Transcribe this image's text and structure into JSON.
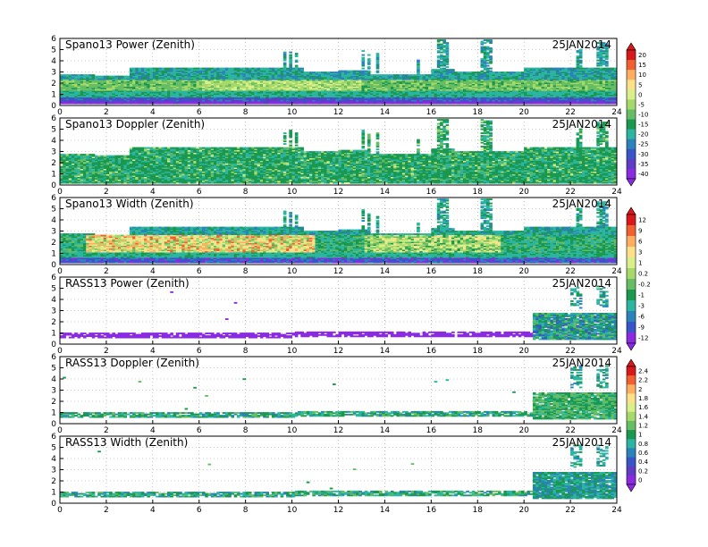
{
  "chart_data": [
    {
      "type": "heatmap",
      "panel": "spano13_power",
      "title": "Spano13 Power (Zenith)",
      "date": "25JAN2014",
      "xlim": [
        0,
        24
      ],
      "ylim": [
        0,
        6
      ],
      "x_ticks": [
        "0",
        "2",
        "4",
        "6",
        "8",
        "10",
        "12",
        "14",
        "16",
        "18",
        "20",
        "22",
        "24"
      ],
      "y_ticks": [
        "0",
        "1",
        "2",
        "3",
        "4",
        "5",
        "6"
      ],
      "coverage_top_km": [
        [
          0,
          2.7
        ],
        [
          1.5,
          2.6
        ],
        [
          3,
          3.3
        ],
        [
          10.5,
          3.0
        ],
        [
          12,
          3.1
        ],
        [
          13.3,
          2.7
        ],
        [
          16,
          3.2
        ],
        [
          17,
          3.0
        ],
        [
          20,
          3.3
        ],
        [
          24,
          3.3
        ]
      ],
      "colorbar_group": 1
    },
    {
      "type": "heatmap",
      "panel": "spano13_doppler",
      "title": "Spano13 Doppler (Zenith)",
      "date": "25JAN2014",
      "xlim": [
        0,
        24
      ],
      "ylim": [
        0,
        6
      ],
      "x_ticks": [
        "0",
        "2",
        "4",
        "6",
        "8",
        "10",
        "12",
        "14",
        "16",
        "18",
        "20",
        "22",
        "24"
      ],
      "y_ticks": [
        "0",
        "1",
        "2",
        "3",
        "4",
        "5",
        "6"
      ],
      "colorbar_group": 1
    },
    {
      "type": "heatmap",
      "panel": "spano13_width",
      "title": "Spano13 Width (Zenith)",
      "date": "25JAN2014",
      "xlim": [
        0,
        24
      ],
      "ylim": [
        0,
        6
      ],
      "x_ticks": [
        "0",
        "2",
        "4",
        "6",
        "8",
        "10",
        "12",
        "14",
        "16",
        "18",
        "20",
        "22",
        "24"
      ],
      "y_ticks": [
        "0",
        "1",
        "2",
        "3",
        "4",
        "5",
        "6"
      ],
      "colorbar_group": 2
    },
    {
      "type": "heatmap",
      "panel": "rass13_power",
      "title": "RASS13 Power (Zenith)",
      "date": "25JAN2014",
      "xlim": [
        0,
        24
      ],
      "ylim": [
        0,
        6
      ],
      "x_ticks": [
        "0",
        "2",
        "4",
        "6",
        "8",
        "10",
        "12",
        "14",
        "16",
        "18",
        "20",
        "22",
        "24"
      ],
      "y_ticks": [
        "0",
        "1",
        "2",
        "3",
        "4",
        "5",
        "6"
      ],
      "colorbar_group": 2
    },
    {
      "type": "heatmap",
      "panel": "rass13_doppler",
      "title": "RASS13 Doppler (Zenith)",
      "date": "25JAN2014",
      "xlim": [
        0,
        24
      ],
      "ylim": [
        0,
        6
      ],
      "x_ticks": [
        "0",
        "2",
        "4",
        "6",
        "8",
        "10",
        "12",
        "14",
        "16",
        "18",
        "20",
        "22",
        "24"
      ],
      "y_ticks": [
        "0",
        "1",
        "2",
        "3",
        "4",
        "5",
        "6"
      ],
      "colorbar_group": 3
    },
    {
      "type": "heatmap",
      "panel": "rass13_width",
      "title": "RASS13 Width (Zenith)",
      "date": "25JAN2014",
      "xlim": [
        0,
        24
      ],
      "ylim": [
        0,
        6
      ],
      "x_ticks": [
        "0",
        "2",
        "4",
        "6",
        "8",
        "10",
        "12",
        "14",
        "16",
        "18",
        "20",
        "22",
        "24"
      ],
      "y_ticks": [
        "0",
        "1",
        "2",
        "3",
        "4",
        "5",
        "6"
      ],
      "colorbar_group": 3
    }
  ],
  "colorbars": [
    {
      "labels": [
        "20",
        "15",
        "10",
        "5",
        "0",
        "-5",
        "-10",
        "-15",
        "-20",
        "-25",
        "-30",
        "-35",
        "-40"
      ],
      "colors": [
        "#d7191c",
        "#f06030",
        "#fdae61",
        "#fee08b",
        "#d9ef8b",
        "#a6d96a",
        "#66bd63",
        "#1a9850",
        "#2cb5a0",
        "#2b83ba",
        "#3a55c8",
        "#5e3cc4",
        "#8a2be2"
      ]
    },
    {
      "labels": [
        "12",
        "9",
        "6",
        "3",
        "1",
        "0.2",
        "-0.2",
        "-1",
        "-3",
        "-6",
        "-9",
        "-12"
      ],
      "colors": [
        "#d7191c",
        "#f06030",
        "#fdae61",
        "#fee08b",
        "#d9ef8b",
        "#a6d96a",
        "#66bd63",
        "#1a9850",
        "#2cb5a0",
        "#2b83ba",
        "#3a55c8",
        "#8a2be2"
      ]
    },
    {
      "labels": [
        "2.4",
        "2.2",
        "2",
        "1.8",
        "1.6",
        "1.4",
        "1.2",
        "1",
        "0.8",
        "0.6",
        "0.4",
        "0.2",
        "0"
      ],
      "colors": [
        "#d7191c",
        "#f06030",
        "#fdae61",
        "#fee08b",
        "#d9ef8b",
        "#a6d96a",
        "#66bd63",
        "#1a9850",
        "#2cb5a0",
        "#2b83ba",
        "#3a55c8",
        "#5e3cc4",
        "#8a2be2"
      ]
    }
  ]
}
